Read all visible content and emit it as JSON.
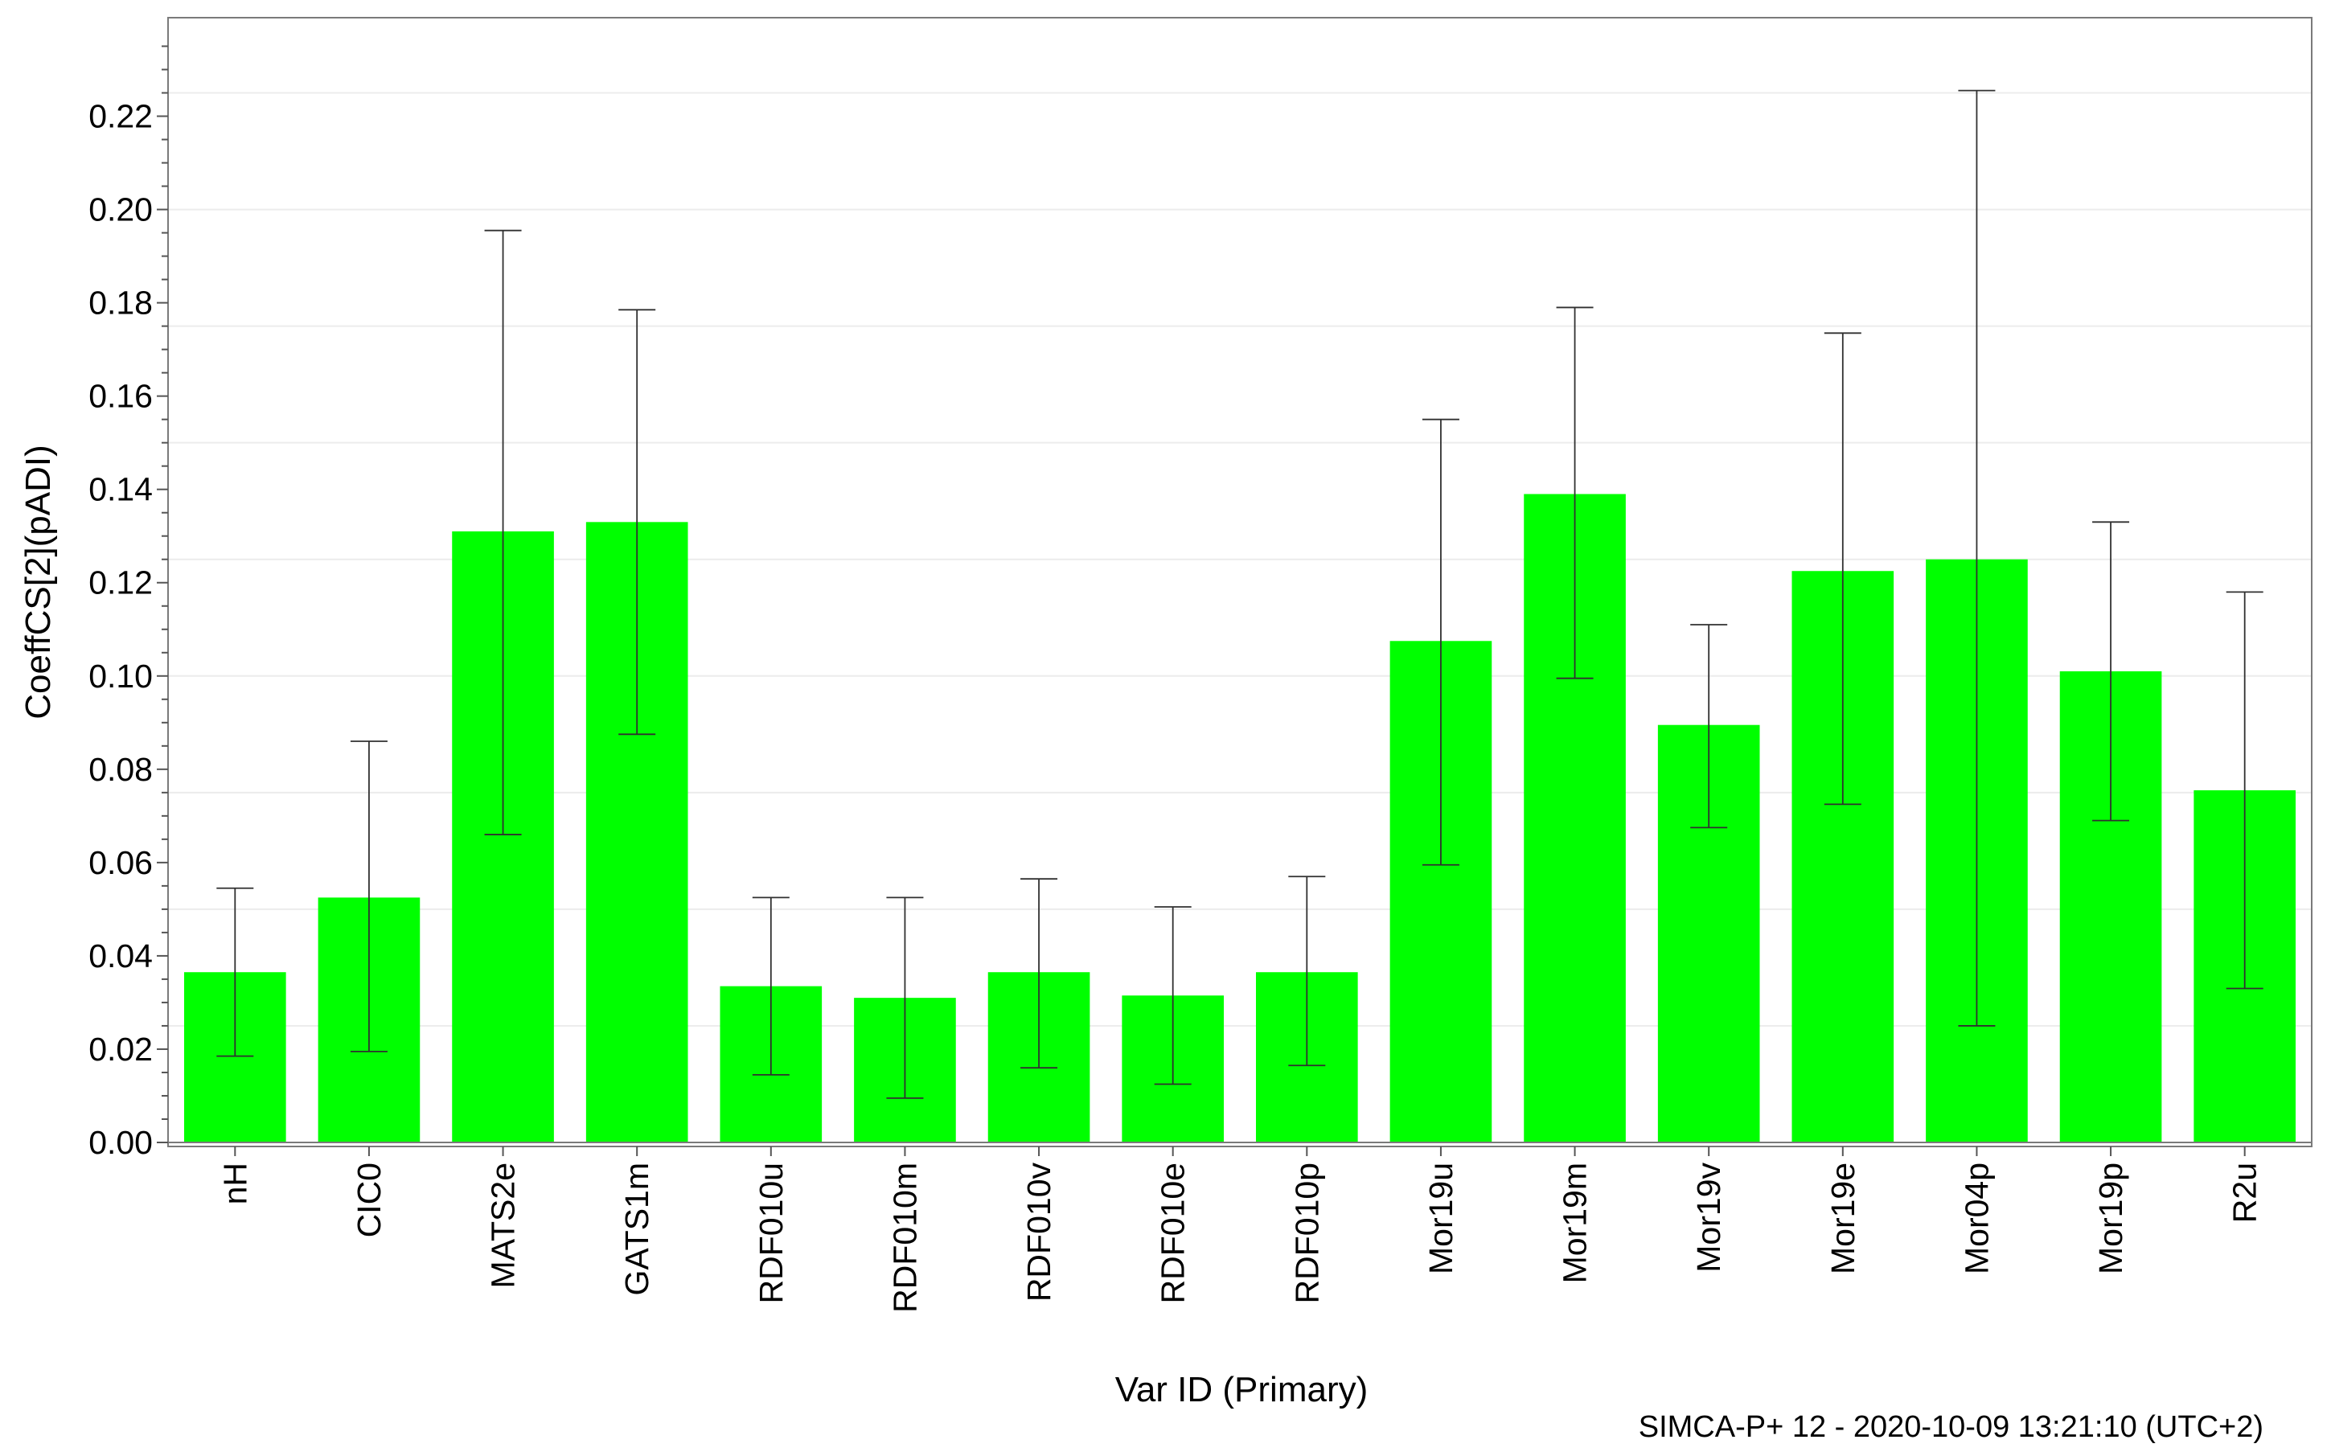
{
  "chart_data": {
    "type": "bar",
    "title": "",
    "xlabel": "Var ID (Primary)",
    "ylabel": "CoeffCS[2](pADI)",
    "categories": [
      "nH",
      "CIC0",
      "MATS2e",
      "GATS1m",
      "RDF010u",
      "RDF010m",
      "RDF010v",
      "RDF010e",
      "RDF010p",
      "Mor19u",
      "Mor19m",
      "Mor19v",
      "Mor19e",
      "Mor04p",
      "Mor19p",
      "R2u"
    ],
    "values": [
      0.0365,
      0.0525,
      0.131,
      0.133,
      0.0335,
      0.031,
      0.0365,
      0.0315,
      0.0365,
      0.1075,
      0.139,
      0.0895,
      0.1225,
      0.125,
      0.101,
      0.0755
    ],
    "error_low": [
      0.0185,
      0.0195,
      0.066,
      0.0875,
      0.0145,
      0.0095,
      0.016,
      0.0125,
      0.0165,
      0.0595,
      0.0995,
      0.0675,
      0.0725,
      0.025,
      0.069,
      0.033
    ],
    "error_high": [
      0.0545,
      0.086,
      0.1955,
      0.1785,
      0.0525,
      0.0525,
      0.0565,
      0.0505,
      0.057,
      0.155,
      0.179,
      0.111,
      0.1735,
      0.2255,
      0.133,
      0.118
    ],
    "yticks": [
      "0.00",
      "0.02",
      "0.04",
      "0.06",
      "0.08",
      "0.10",
      "0.12",
      "0.14",
      "0.16",
      "0.18",
      "0.20",
      "0.22"
    ],
    "ylim": [
      0,
      0.2375
    ],
    "grid": true,
    "bar_color": "#00ff00",
    "legend": "none"
  },
  "footer": {
    "text": "SIMCA-P+ 12 - 2020-10-09 13:21:10 (UTC+2)"
  }
}
